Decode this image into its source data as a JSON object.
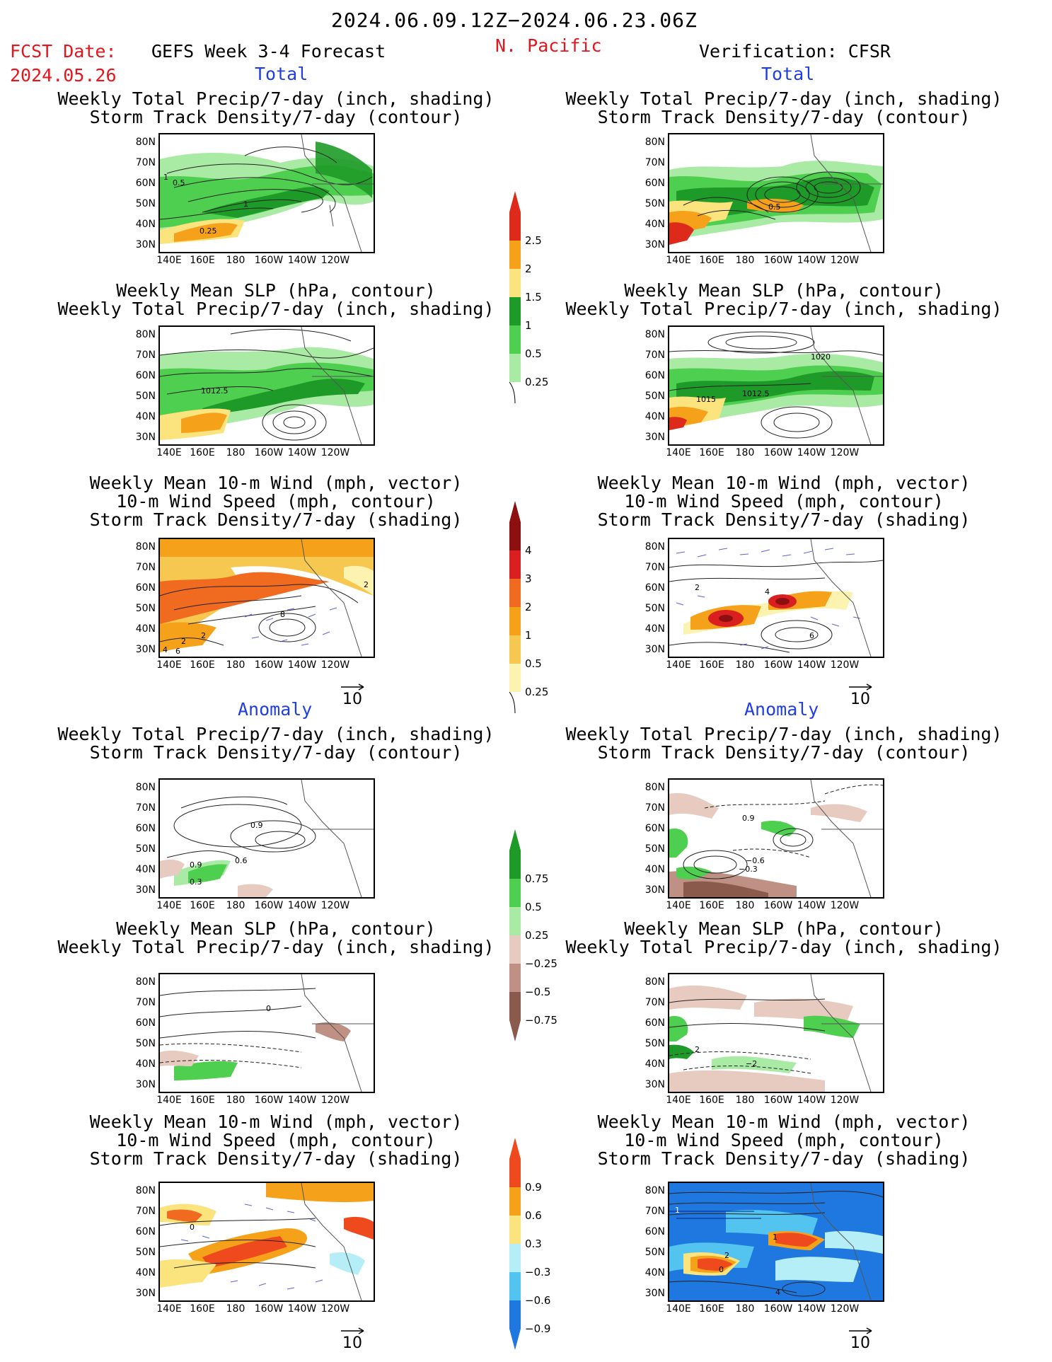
{
  "header": {
    "date_range": "2024.06.09.12Z−2024.06.23.06Z",
    "fcst_label": "FCST Date:",
    "fcst_date": "2024.05.26",
    "forecast_title": "GEFS Week 3-4 Forecast",
    "region": "N. Pacific",
    "verification": "Verification: CFSR"
  },
  "sections": {
    "total": "Total",
    "anomaly": "Anomaly"
  },
  "panel_titles": {
    "precip_storm": [
      "Weekly Total Precip/7-day (inch, shading)",
      "Storm Track Density/7-day (contour)"
    ],
    "slp_precip": [
      "Weekly Mean SLP (hPa, contour)",
      "Weekly Total Precip/7-day (inch, shading)"
    ],
    "wind_storm": [
      "Weekly Mean 10-m Wind (mph, vector)",
      "10-m Wind Speed (mph, contour)",
      "Storm Track Density/7-day (shading)"
    ]
  },
  "axes": {
    "lat_ticks": [
      "80N",
      "70N",
      "60N",
      "50N",
      "40N",
      "30N"
    ],
    "lon_ticks": [
      "140E",
      "160E",
      "180",
      "160W",
      "140W",
      "120W"
    ]
  },
  "contour_labels": {
    "fc_precip_storm": [
      "1",
      "0.5",
      "1",
      "0.25"
    ],
    "vf_precip_storm": [
      "0.5"
    ],
    "fc_slp": [
      "1012.5"
    ],
    "vf_slp": [
      "1020",
      "1015",
      "1012.5"
    ],
    "fc_wind": [
      "2",
      "2",
      "8",
      "4",
      "6",
      "2"
    ],
    "vf_wind": [
      "4",
      "2",
      "6"
    ],
    "fc_anom_precip": [
      "0.9",
      "0.6",
      "0.9",
      "0.3"
    ],
    "vf_anom_precip": [
      "0.9",
      "−0.6",
      "−0.3"
    ],
    "fc_anom_slp": [
      "0"
    ],
    "vf_anom_slp": [
      "2",
      "−2"
    ],
    "fc_anom_wind": [
      "0"
    ],
    "vf_anom_wind": [
      "1",
      "2",
      "1",
      "0",
      "4"
    ]
  },
  "colorbars": {
    "precip": {
      "labels": [
        "2.5",
        "2",
        "1.5",
        "1",
        "0.5",
        "0.25"
      ],
      "colors": [
        "#dd2a1a",
        "#f6a11a",
        "#fbe37e",
        "#1e9a28",
        "#4fcf4f",
        "#a9eaa4"
      ]
    },
    "storm_density": {
      "labels": [
        "4",
        "3",
        "2",
        "1",
        "0.5",
        "0.25"
      ],
      "colors": [
        "#8c1010",
        "#d91f1f",
        "#f06a20",
        "#f6a11a",
        "#f7c850",
        "#fdf3b0"
      ]
    },
    "precip_anom": {
      "labels": [
        "0.75",
        "0.5",
        "0.25",
        "−0.25",
        "−0.5",
        "−0.75"
      ],
      "colors": [
        "#1e9a28",
        "#4fcf4f",
        "#a9eaa4",
        "#e7cbc0",
        "#bf9184",
        "#8a5a4c"
      ]
    },
    "storm_anom": {
      "labels": [
        "0.9",
        "0.6",
        "0.3",
        "−0.3",
        "−0.6",
        "−0.9"
      ],
      "colors": [
        "#ee4a1e",
        "#f6a11a",
        "#fbe37e",
        "#b5eef7",
        "#53c3f0",
        "#1f78e0"
      ]
    }
  },
  "vector_scale": "10"
}
